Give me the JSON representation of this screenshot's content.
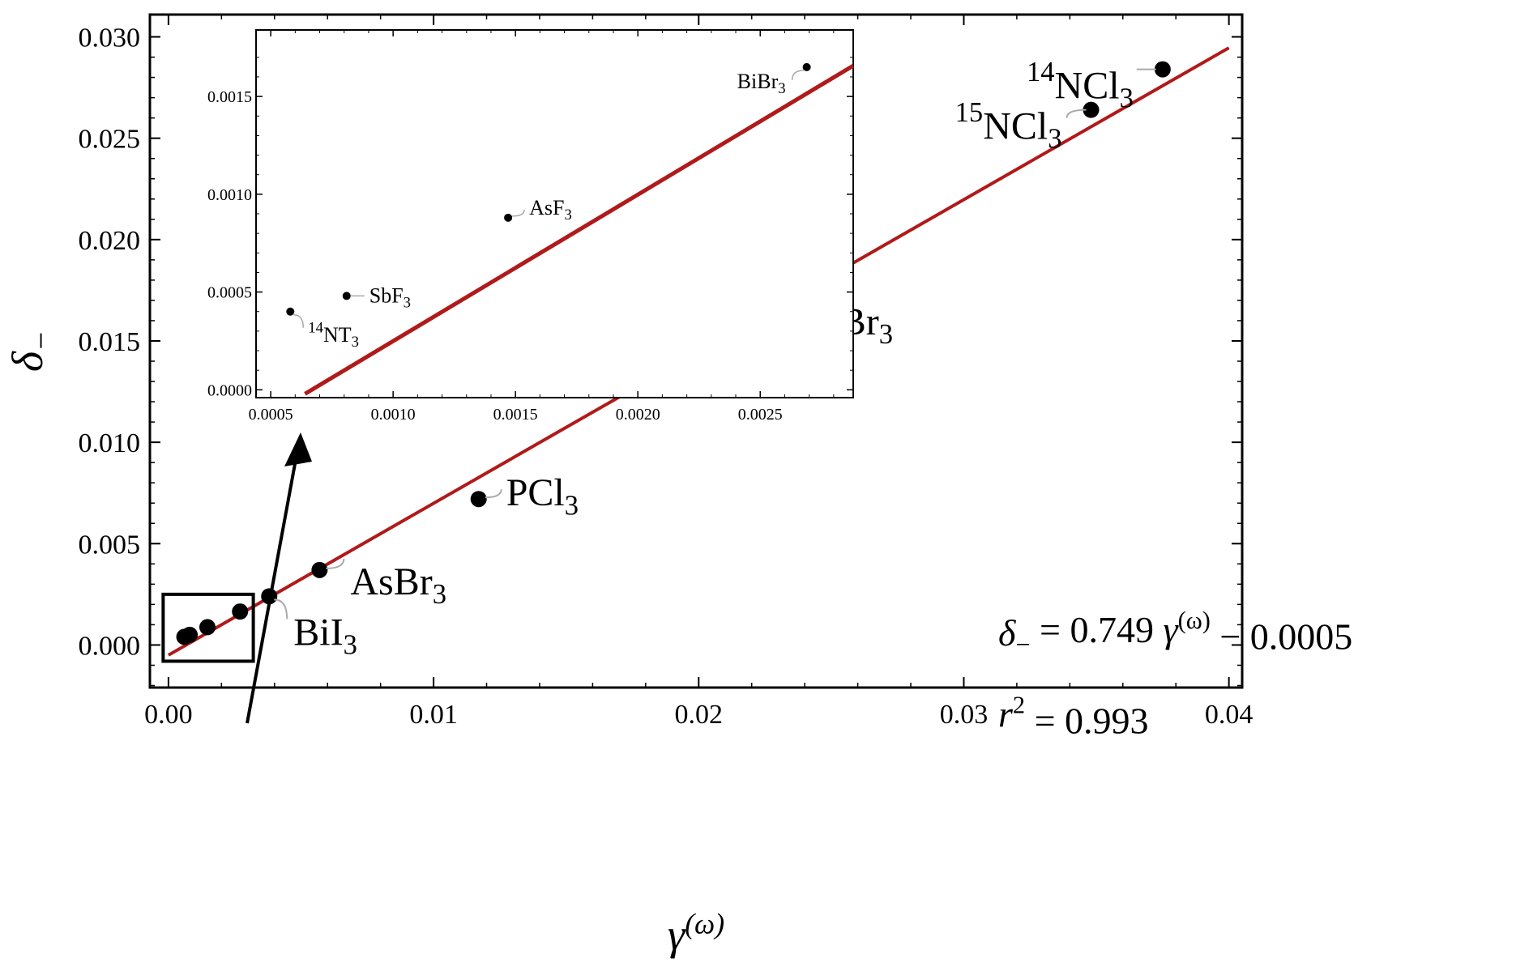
{
  "chart_data": [
    {
      "type": "scatter",
      "name": "main",
      "xlabel": "γ(ω)",
      "ylabel": "δ−",
      "xlim": [
        -0.0007,
        0.0405
      ],
      "ylim": [
        -0.0021,
        0.0311
      ],
      "xticks": [
        "0.00",
        "0.01",
        "0.02",
        "0.03",
        "0.04"
      ],
      "xtick_values": [
        0.0,
        0.01,
        0.02,
        0.03,
        0.04
      ],
      "yticks": [
        "0.000",
        "0.005",
        "0.010",
        "0.015",
        "0.020",
        "0.025",
        "0.030"
      ],
      "ytick_values": [
        0.0,
        0.005,
        0.01,
        0.015,
        0.02,
        0.025,
        0.03
      ],
      "grid": false,
      "points": [
        {
          "label": "",
          "x": 0.0006,
          "y": 0.0004
        },
        {
          "label": "",
          "x": 0.0008,
          "y": 0.0005
        },
        {
          "label": "",
          "x": 0.00147,
          "y": 0.00088
        },
        {
          "label": "",
          "x": 0.0027,
          "y": 0.00165
        },
        {
          "label": "BiI3",
          "x": 0.0038,
          "y": 0.0024
        },
        {
          "label": "AsBr3",
          "x": 0.0057,
          "y": 0.0037
        },
        {
          "label": "PCl3",
          "x": 0.0117,
          "y": 0.0072
        },
        {
          "label": "PBr3",
          "x": 0.0236,
          "y": 0.015
        },
        {
          "label": "15NCl3",
          "x": 0.0348,
          "y": 0.0264
        },
        {
          "label": "14NCl3",
          "x": 0.0375,
          "y": 0.0284
        }
      ],
      "fit": {
        "slope": 0.749,
        "intercept": -0.0005,
        "x_range": [
          0.0,
          0.04
        ],
        "color": "#b01a1a"
      },
      "annotations": {
        "equation": {
          "lhs": "δ",
          "lhs_sub": "−",
          "eq": " = 0.749 ",
          "gamma": "γ",
          "omega": "(ω)",
          "rest": " − 0.0005"
        },
        "r2": {
          "r": "r",
          "sup": "2",
          "value": " = 0.993"
        }
      }
    },
    {
      "type": "scatter",
      "name": "inset",
      "xlim": [
        0.00044,
        0.00288
      ],
      "ylim": [
        -4e-05,
        0.00184
      ],
      "xticks": [
        "0.0005",
        "0.0010",
        "0.0015",
        "0.0020",
        "0.0025"
      ],
      "xtick_values": [
        0.0005,
        0.001,
        0.0015,
        0.002,
        0.0025
      ],
      "yticks": [
        "0.0000",
        "0.0005",
        "0.0010",
        "0.0015"
      ],
      "ytick_values": [
        0.0,
        0.0005,
        0.001,
        0.0015
      ],
      "grid": false,
      "points": [
        {
          "label": "14NT3",
          "x": 0.00058,
          "y": 0.0004
        },
        {
          "label": "SbF3",
          "x": 0.00081,
          "y": 0.00048
        },
        {
          "label": "AsF3",
          "x": 0.00147,
          "y": 0.00088
        },
        {
          "label": "BiBr3",
          "x": 0.00269,
          "y": 0.00165
        }
      ],
      "fit": {
        "slope": 0.749,
        "intercept": -0.0005,
        "x_range": [
          0.00064,
          0.00288
        ],
        "color": "#b01a1a"
      }
    }
  ]
}
